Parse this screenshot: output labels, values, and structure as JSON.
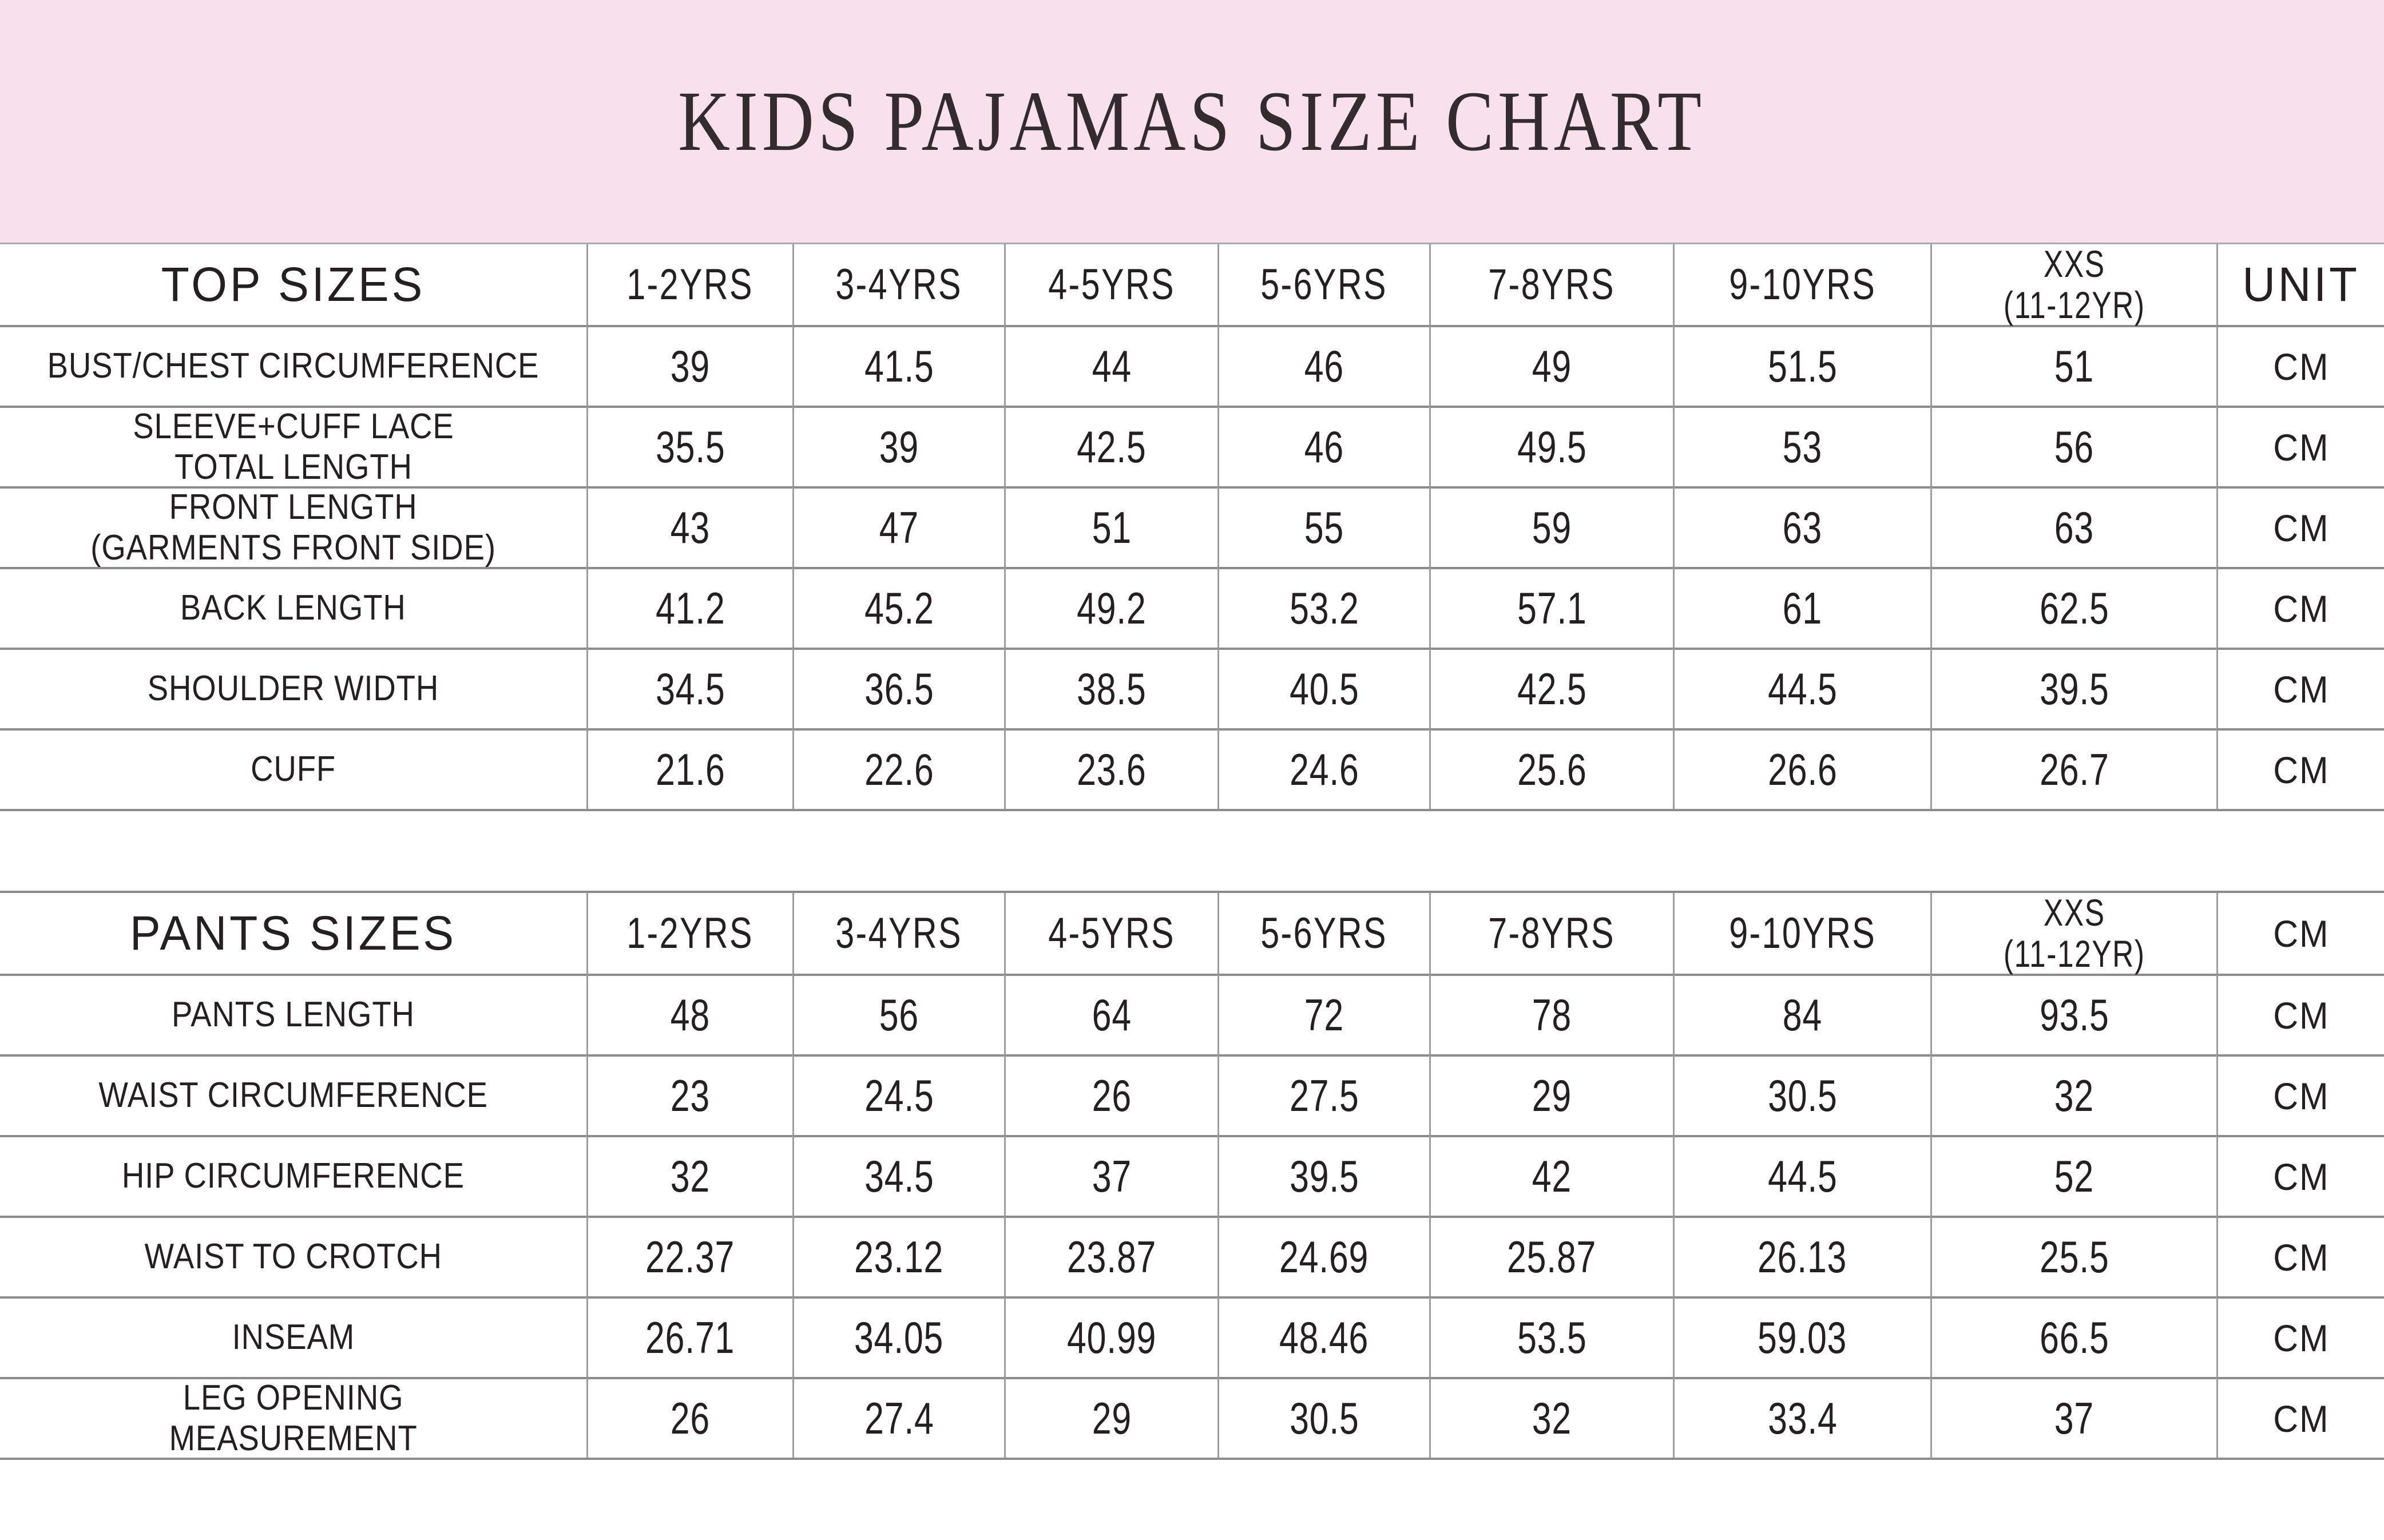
{
  "title": "KIDS PAJAMAS SIZE CHART",
  "colors": {
    "banner_pink": "#f9e1ec",
    "row_line_gray": "#8c8c8c",
    "column_line_gray": "#9e9e9e",
    "text": "#242021"
  },
  "tables": [
    {
      "id": "top-sizes",
      "header": {
        "label": "TOP SIZES",
        "columns": [
          "1-2YRS",
          "3-4YRS",
          "4-5YRS",
          "5-6YRS",
          "7-8YRS",
          "9-10YRS"
        ],
        "last_column_lines": [
          "XXS",
          "(11-12YR)"
        ],
        "unit_label": "UNIT"
      },
      "rows": [
        {
          "label_lines": [
            "BUST/CHEST CIRCUMFERENCE"
          ],
          "values": [
            "39",
            "41.5",
            "44",
            "46",
            "49",
            "51.5",
            "51"
          ],
          "unit": "CM"
        },
        {
          "label_lines": [
            "SLEEVE+CUFF LACE",
            "TOTAL LENGTH"
          ],
          "values": [
            "35.5",
            "39",
            "42.5",
            "46",
            "49.5",
            "53",
            "56"
          ],
          "unit": "CM"
        },
        {
          "label_lines": [
            "FRONT LENGTH",
            "(GARMENTS FRONT SIDE)"
          ],
          "values": [
            "43",
            "47",
            "51",
            "55",
            "59",
            "63",
            "63"
          ],
          "unit": "CM"
        },
        {
          "label_lines": [
            "BACK LENGTH"
          ],
          "values": [
            "41.2",
            "45.2",
            "49.2",
            "53.2",
            "57.1",
            "61",
            "62.5"
          ],
          "unit": "CM"
        },
        {
          "label_lines": [
            "SHOULDER WIDTH"
          ],
          "values": [
            "34.5",
            "36.5",
            "38.5",
            "40.5",
            "42.5",
            "44.5",
            "39.5"
          ],
          "unit": "CM"
        },
        {
          "label_lines": [
            "CUFF"
          ],
          "values": [
            "21.6",
            "22.6",
            "23.6",
            "24.6",
            "25.6",
            "26.6",
            "26.7"
          ],
          "unit": "CM"
        }
      ]
    },
    {
      "id": "pants-sizes",
      "header": {
        "label": "PANTS SIZES",
        "columns": [
          "1-2YRS",
          "3-4YRS",
          "4-5YRS",
          "5-6YRS",
          "7-8YRS",
          "9-10YRS"
        ],
        "last_column_lines": [
          "XXS",
          "(11-12YR)"
        ],
        "unit_label": "CM"
      },
      "rows": [
        {
          "label_lines": [
            "PANTS LENGTH"
          ],
          "values": [
            "48",
            "56",
            "64",
            "72",
            "78",
            "84",
            "93.5"
          ],
          "unit": "CM"
        },
        {
          "label_lines": [
            "WAIST CIRCUMFERENCE"
          ],
          "values": [
            "23",
            "24.5",
            "26",
            "27.5",
            "29",
            "30.5",
            "32"
          ],
          "unit": "CM"
        },
        {
          "label_lines": [
            "HIP CIRCUMFERENCE"
          ],
          "values": [
            "32",
            "34.5",
            "37",
            "39.5",
            "42",
            "44.5",
            "52"
          ],
          "unit": "CM"
        },
        {
          "label_lines": [
            "WAIST TO CROTCH"
          ],
          "values": [
            "22.37",
            "23.12",
            "23.87",
            "24.69",
            "25.87",
            "26.13",
            "25.5"
          ],
          "unit": "CM"
        },
        {
          "label_lines": [
            "INSEAM"
          ],
          "values": [
            "26.71",
            "34.05",
            "40.99",
            "48.46",
            "53.5",
            "59.03",
            "66.5"
          ],
          "unit": "CM"
        },
        {
          "label_lines": [
            "LEG OPENING",
            "MEASUREMENT"
          ],
          "values": [
            "26",
            "27.4",
            "29",
            "30.5",
            "32",
            "33.4",
            "37"
          ],
          "unit": "CM"
        }
      ]
    }
  ]
}
